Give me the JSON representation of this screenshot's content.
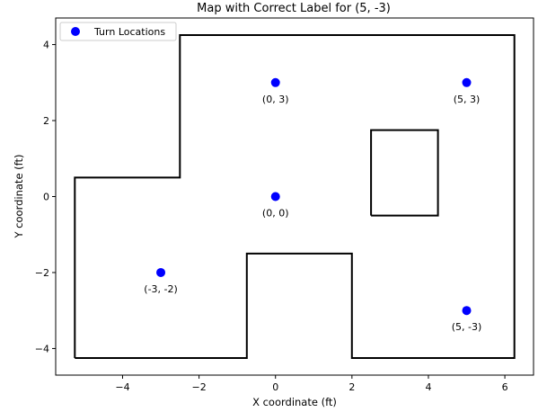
{
  "chart_data": {
    "type": "scatter",
    "title": "Map with Correct Label for (5, -3)",
    "xlabel": "X coordinate (ft)",
    "ylabel": "Y coordinate (ft)",
    "xlim": [
      -5.75,
      6.75
    ],
    "ylim": [
      -4.7,
      4.7
    ],
    "xticks": [
      -4,
      -2,
      0,
      2,
      4,
      6
    ],
    "xtick_labels": [
      "−4",
      "−2",
      "0",
      "2",
      "4",
      "6"
    ],
    "yticks": [
      -4,
      -2,
      0,
      2,
      4
    ],
    "ytick_labels": [
      "−4",
      "−2",
      "0",
      "2",
      "4"
    ],
    "grid": false,
    "legend": {
      "placement": "top-left",
      "entries": [
        "Turn Locations"
      ]
    },
    "colors": {
      "points": "#0000ff",
      "walls": "#000000"
    },
    "series": [
      {
        "name": "Turn Locations",
        "points": [
          {
            "x": 0,
            "y": 3,
            "label": "(0, 3)"
          },
          {
            "x": 5,
            "y": 3,
            "label": "(5, 3)"
          },
          {
            "x": 0,
            "y": 0,
            "label": "(0, 0)"
          },
          {
            "x": -3,
            "y": -2,
            "label": "(-3, -2)"
          },
          {
            "x": 5,
            "y": -3,
            "label": "(5, -3)"
          }
        ]
      }
    ],
    "walls": [
      {
        "points": [
          [
            -5.25,
            -4.25
          ],
          [
            -5.25,
            0.5
          ],
          [
            -2.5,
            0.5
          ],
          [
            -2.5,
            4.25
          ],
          [
            6.25,
            4.25
          ],
          [
            6.25,
            -4.25
          ],
          [
            2,
            -4.25
          ],
          [
            2,
            -1.5
          ],
          [
            -0.75,
            -1.5
          ],
          [
            -0.75,
            -4.25
          ],
          [
            -5.25,
            -4.25
          ]
        ]
      },
      {
        "points": [
          [
            2.5,
            -0.5
          ],
          [
            2.5,
            1.75
          ],
          [
            4.25,
            1.75
          ],
          [
            4.25,
            -0.5
          ],
          [
            2.5,
            -0.5
          ]
        ]
      }
    ]
  }
}
